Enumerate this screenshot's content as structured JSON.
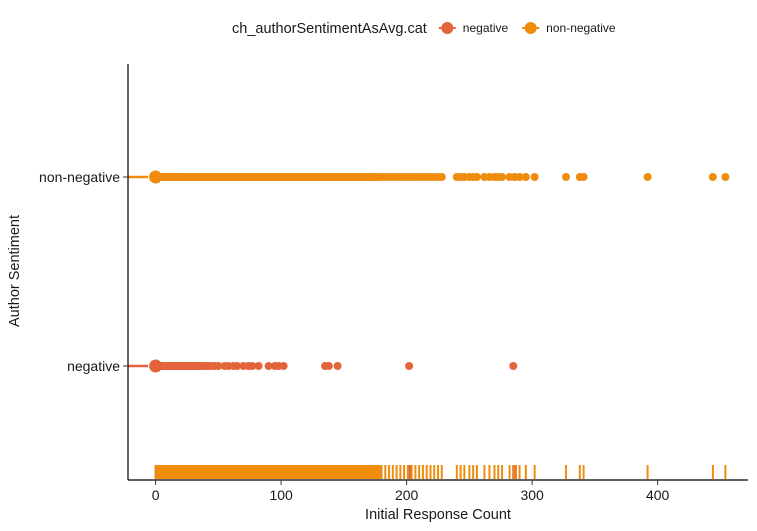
{
  "chart_data": {
    "type": "scatter",
    "xlabel": "Initial Response Count",
    "ylabel": "Author Sentiment",
    "xlim": [
      -22,
      472
    ],
    "x_ticks": [
      0,
      100,
      200,
      300,
      400
    ],
    "y_categories": [
      "negative",
      "non-negative"
    ],
    "grid": false,
    "legend": {
      "title": "ch_authorSentimentAsAvg.cat",
      "position": "top",
      "entries": [
        "negative",
        "non-negative"
      ]
    },
    "colors": {
      "negative": "#e3643a",
      "non-negative": "#ef8c0e"
    },
    "series": [
      {
        "name": "negative",
        "category": "negative",
        "x": [
          0,
          1,
          2,
          3,
          4,
          5,
          6,
          7,
          8,
          9,
          10,
          11,
          12,
          13,
          14,
          15,
          16,
          17,
          18,
          19,
          20,
          21,
          22,
          23,
          24,
          25,
          26,
          27,
          28,
          29,
          30,
          31,
          32,
          33,
          34,
          35,
          36,
          38,
          40,
          42,
          44,
          47,
          50,
          55,
          58,
          62,
          65,
          70,
          74,
          77,
          82,
          90,
          95,
          98,
          102,
          135,
          138,
          145,
          202,
          285
        ],
        "rug_only": [
          1,
          2,
          3,
          5,
          7,
          9,
          12,
          15,
          20,
          25,
          30,
          33,
          35,
          40,
          45,
          50,
          55,
          60,
          66,
          70,
          76,
          80,
          90,
          95,
          100,
          110,
          120,
          130,
          135,
          138,
          140,
          145,
          202,
          203,
          285,
          287
        ]
      },
      {
        "name": "non-negative",
        "category": "non-negative",
        "x": [
          0,
          1,
          2,
          3,
          4,
          5,
          6,
          7,
          8,
          9,
          10,
          11,
          12,
          13,
          14,
          15,
          16,
          17,
          18,
          19,
          20,
          22,
          24,
          26,
          28,
          30,
          32,
          34,
          36,
          38,
          40,
          42,
          44,
          46,
          48,
          50,
          52,
          54,
          56,
          58,
          60,
          62,
          64,
          66,
          68,
          70,
          72,
          74,
          76,
          78,
          80,
          82,
          84,
          86,
          88,
          90,
          92,
          94,
          96,
          98,
          100,
          102,
          104,
          106,
          108,
          110,
          112,
          114,
          116,
          118,
          120,
          122,
          124,
          126,
          128,
          130,
          132,
          134,
          136,
          138,
          140,
          142,
          144,
          146,
          148,
          150,
          152,
          154,
          156,
          158,
          160,
          162,
          164,
          166,
          168,
          170,
          172,
          174,
          176,
          178,
          180,
          183,
          186,
          189,
          192,
          195,
          198,
          201,
          204,
          207,
          210,
          213,
          216,
          219,
          222,
          225,
          228,
          240,
          243,
          246,
          250,
          253,
          256,
          262,
          266,
          270,
          273,
          276,
          282,
          286,
          290,
          295,
          302,
          327,
          338,
          341,
          392,
          444,
          454
        ],
        "rug_only": []
      }
    ]
  }
}
